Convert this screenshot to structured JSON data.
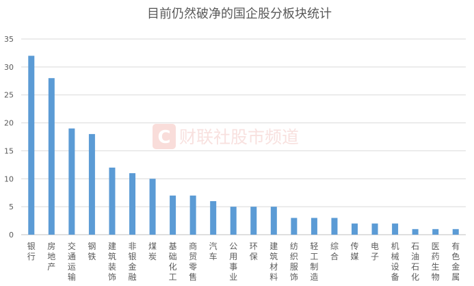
{
  "watermark": {
    "logo_letter": "C",
    "text": "财联社股市频道"
  },
  "chart_data": {
    "type": "bar",
    "title": "目前仍然破净的国企股分板块统计",
    "categories": [
      "银行",
      "房地产",
      "交通运输",
      "钢铁",
      "建筑装饰",
      "非银金融",
      "煤炭",
      "基础化工",
      "商贸零售",
      "汽车",
      "公用事业",
      "环保",
      "建筑材料",
      "纺织服饰",
      "轻工制造",
      "综合",
      "传媒",
      "电子",
      "机械设备",
      "石油石化",
      "医药生物",
      "有色金属"
    ],
    "values": [
      32,
      28,
      19,
      18,
      12,
      11,
      10,
      7,
      7,
      6,
      5,
      5,
      5,
      3,
      3,
      3,
      2,
      2,
      2,
      1,
      1,
      1
    ],
    "ylim": [
      0,
      35
    ],
    "yticks": [
      0,
      5,
      10,
      15,
      20,
      25,
      30,
      35
    ],
    "grid": true,
    "legend": "none",
    "bar_color": "#5b9bd5",
    "grid_color": "#d9d9d9",
    "text_color": "#595959"
  }
}
